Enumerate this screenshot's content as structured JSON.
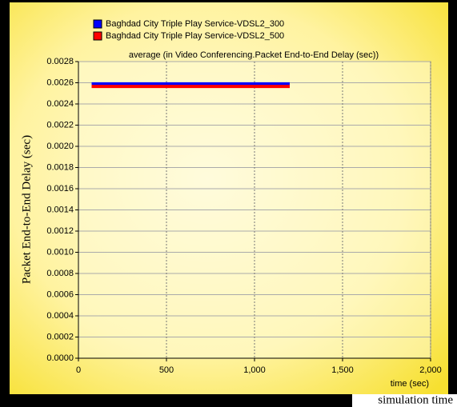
{
  "chart_data": {
    "type": "line",
    "title": "average (in Video Conferencing.Packet End-to-End Delay (sec))",
    "y_label": "Packet End-to-End Delay (sec)",
    "x_label": "time (sec)",
    "footer": "simulation time",
    "x": [
      75,
      1200
    ],
    "series": [
      {
        "name": "Baghdad City Triple Play Service-VDSL2_300",
        "color": "#0000ff",
        "values": [
          0.00259,
          0.00259
        ]
      },
      {
        "name": "Baghdad City Triple Play Service-VDSL2_500",
        "color": "#ff0000",
        "values": [
          0.002565,
          0.002565
        ]
      }
    ],
    "xlim": [
      0,
      2000
    ],
    "xticks": [
      0,
      500,
      {
        "value": 1000,
        "label": "1,000"
      },
      {
        "value": 1500,
        "label": "1,500"
      },
      {
        "value": 2000,
        "label": "2,000"
      }
    ],
    "ylim": [
      0,
      0.0028
    ],
    "yticks": [
      {
        "value": 0,
        "label": "0.0000"
      },
      {
        "value": 0.0002,
        "label": "0.0002"
      },
      {
        "value": 0.0004,
        "label": "0.0004"
      },
      {
        "value": 0.0006,
        "label": "0.0006"
      },
      {
        "value": 0.0008,
        "label": "0.0008"
      },
      {
        "value": 0.001,
        "label": "0.0010"
      },
      {
        "value": 0.0012,
        "label": "0.0012"
      },
      {
        "value": 0.0014,
        "label": "0.0014"
      },
      {
        "value": 0.0016,
        "label": "0.0016"
      },
      {
        "value": 0.0018,
        "label": "0.0018"
      },
      {
        "value": 0.002,
        "label": "0.0020"
      },
      {
        "value": 0.0022,
        "label": "0.0022"
      },
      {
        "value": 0.0024,
        "label": "0.0024"
      },
      {
        "value": 0.0026,
        "label": "0.0026"
      },
      {
        "value": 0.0028,
        "label": "0.0028"
      }
    ],
    "grid": true
  }
}
